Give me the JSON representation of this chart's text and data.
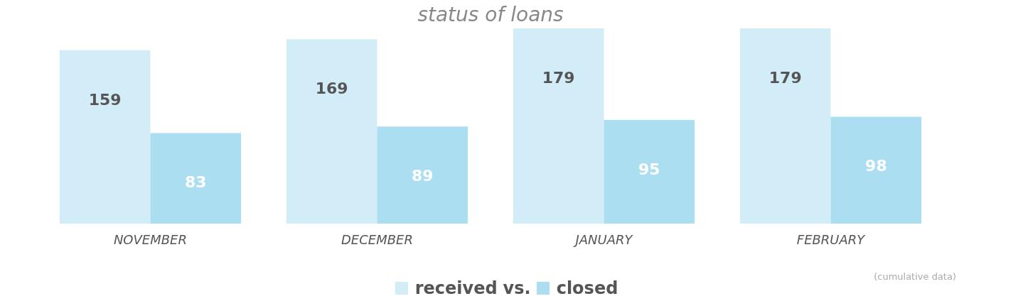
{
  "chart_data": {
    "type": "bar",
    "title": "status of loans",
    "categories": [
      "NOVEMBER",
      "DECEMBER",
      "JANUARY",
      "FEBRUARY"
    ],
    "series": [
      {
        "name": "received",
        "color": "#d3edf8",
        "values": [
          159,
          169,
          179,
          179
        ]
      },
      {
        "name": "closed",
        "color": "#aadef0",
        "values": [
          83,
          89,
          95,
          98
        ]
      }
    ],
    "data_labels": true,
    "legend": "bottom",
    "annotations": [
      "vs.",
      "(cumulative data)"
    ]
  }
}
